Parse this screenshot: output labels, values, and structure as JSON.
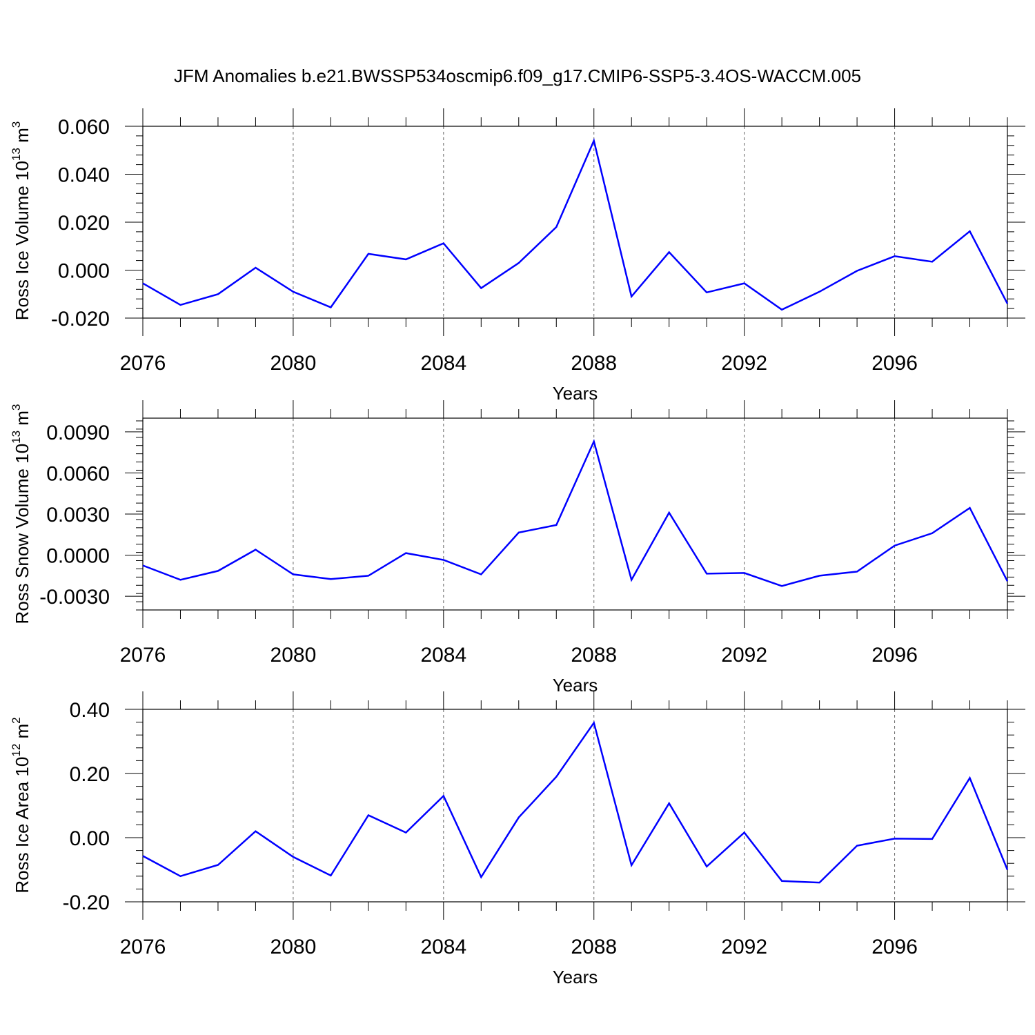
{
  "title": "JFM Anomalies b.e21.BWSSP534oscmip6.f09_g17.CMIP6-SSP5-3.4OS-WACCM.005",
  "chart_data": [
    {
      "type": "line",
      "xlabel": "Years",
      "ylabel": "Ross Ice Volume 10",
      "ylabel_exp": "13",
      "ylabel_unit": " m",
      "ylabel_unit_exp": "3",
      "xlim": [
        2076,
        2099
      ],
      "ylim": [
        -0.02,
        0.06
      ],
      "xticks": [
        2076,
        2080,
        2084,
        2088,
        2092,
        2096
      ],
      "xtick_labels": [
        "2076",
        "2080",
        "2084",
        "2088",
        "2092",
        "2096"
      ],
      "yticks": [
        -0.02,
        0.0,
        0.02,
        0.04,
        0.06
      ],
      "ytick_labels": [
        "-0.020",
        "0.000",
        "0.020",
        "0.040",
        "0.060"
      ],
      "yminor_step": 0.004,
      "x": [
        2076,
        2077,
        2078,
        2079,
        2080,
        2081,
        2082,
        2083,
        2084,
        2085,
        2086,
        2087,
        2088,
        2089,
        2090,
        2091,
        2092,
        2093,
        2094,
        2095,
        2096,
        2097,
        2098,
        2099
      ],
      "values": [
        -0.0055,
        -0.0145,
        -0.01,
        0.001,
        -0.009,
        -0.0155,
        0.0068,
        0.0045,
        0.0112,
        -0.0075,
        0.003,
        0.018,
        0.054,
        -0.011,
        0.0075,
        -0.0093,
        -0.0055,
        -0.0165,
        -0.009,
        -0.0003,
        0.0058,
        0.0035,
        0.0162,
        -0.014
      ],
      "color": "#0000ff",
      "grid": "vertical-dashed"
    },
    {
      "type": "line",
      "xlabel": "Years",
      "ylabel": "Ross Snow Volume 10",
      "ylabel_exp": "13",
      "ylabel_unit": " m",
      "ylabel_unit_exp": "3",
      "xlim": [
        2076,
        2099
      ],
      "ylim": [
        -0.004,
        0.01
      ],
      "xticks": [
        2076,
        2080,
        2084,
        2088,
        2092,
        2096
      ],
      "xtick_labels": [
        "2076",
        "2080",
        "2084",
        "2088",
        "2092",
        "2096"
      ],
      "yticks": [
        -0.003,
        0.0,
        0.003,
        0.006,
        0.009
      ],
      "ytick_labels": [
        "-0.0030",
        "0.0000",
        "0.0030",
        "0.0060",
        "0.0090"
      ],
      "yminor_step": 0.0006,
      "x": [
        2076,
        2077,
        2078,
        2079,
        2080,
        2081,
        2082,
        2083,
        2084,
        2085,
        2086,
        2087,
        2088,
        2089,
        2090,
        2091,
        2092,
        2093,
        2094,
        2095,
        2096,
        2097,
        2098,
        2099
      ],
      "values": [
        -0.00075,
        -0.0018,
        -0.00115,
        0.0004,
        -0.0014,
        -0.00175,
        -0.0015,
        0.00015,
        -0.00035,
        -0.0014,
        0.00165,
        0.0022,
        0.0083,
        -0.0018,
        0.0031,
        -0.00135,
        -0.0013,
        -0.00225,
        -0.0015,
        -0.0012,
        0.0007,
        0.0016,
        0.00345,
        -0.0019
      ],
      "color": "#0000ff",
      "grid": "vertical-dashed"
    },
    {
      "type": "line",
      "xlabel": "Years",
      "ylabel": "Ross Ice Area 10",
      "ylabel_exp": "12",
      "ylabel_unit": " m",
      "ylabel_unit_exp": "2",
      "xlim": [
        2076,
        2099
      ],
      "ylim": [
        -0.2,
        0.4
      ],
      "xticks": [
        2076,
        2080,
        2084,
        2088,
        2092,
        2096
      ],
      "xtick_labels": [
        "2076",
        "2080",
        "2084",
        "2088",
        "2092",
        "2096"
      ],
      "yticks": [
        -0.2,
        0.0,
        0.2,
        0.4
      ],
      "ytick_labels": [
        "-0.20",
        "0.00",
        "0.20",
        "0.40"
      ],
      "yminor_step": 0.04,
      "x": [
        2076,
        2077,
        2078,
        2079,
        2080,
        2081,
        2082,
        2083,
        2084,
        2085,
        2086,
        2087,
        2088,
        2089,
        2090,
        2091,
        2092,
        2093,
        2094,
        2095,
        2096,
        2097,
        2098,
        2099
      ],
      "values": [
        -0.057,
        -0.12,
        -0.085,
        0.02,
        -0.06,
        -0.118,
        0.07,
        0.016,
        0.13,
        -0.123,
        0.063,
        0.19,
        0.358,
        -0.086,
        0.107,
        -0.09,
        0.016,
        -0.135,
        -0.14,
        -0.025,
        -0.003,
        -0.004,
        0.186,
        -0.1
      ],
      "color": "#0000ff",
      "grid": "vertical-dashed"
    }
  ]
}
